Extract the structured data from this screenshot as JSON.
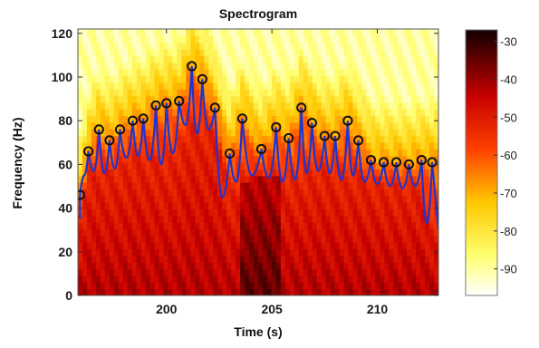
{
  "chart_data": {
    "type": "heatmap",
    "title": "Spectrogram",
    "xlabel": "Time (s)",
    "ylabel": "Frequency (Hz)",
    "xlim": [
      195.8,
      212.9
    ],
    "ylim": [
      0,
      122
    ],
    "xticks": [
      200,
      205,
      210
    ],
    "yticks": [
      0,
      20,
      40,
      60,
      80,
      100,
      120
    ],
    "colorbar": {
      "label_ticks": [
        -30,
        -40,
        -50,
        -60,
        -70,
        -80,
        -90
      ],
      "range": [
        -97,
        -27
      ],
      "colormap": "hot"
    },
    "peak_track": {
      "name": "",
      "color": "#2233cc",
      "marker": "circle",
      "marker_color": "#111111",
      "x": [
        195.9,
        196.3,
        196.8,
        197.3,
        197.8,
        198.4,
        198.9,
        199.5,
        200.0,
        200.6,
        201.2,
        201.7,
        202.3,
        203.0,
        203.6,
        204.5,
        205.2,
        205.8,
        206.4,
        206.9,
        207.5,
        208.0,
        208.6,
        209.1,
        209.7,
        210.3,
        210.9,
        211.5,
        212.1,
        212.6
      ],
      "y": [
        46,
        66,
        76,
        71,
        76,
        80,
        81,
        87,
        88,
        89,
        105,
        99,
        86,
        65,
        81,
        67,
        77,
        72,
        86,
        79,
        73,
        73,
        80,
        71,
        62,
        61,
        61,
        60,
        62,
        61
      ],
      "baseline_y": [
        35,
        55,
        57,
        56,
        58,
        63,
        64,
        62,
        60,
        65,
        78,
        74,
        76,
        45,
        52,
        55,
        54,
        52,
        53,
        56,
        57,
        56,
        53,
        55,
        52,
        51,
        50,
        49,
        50,
        33
      ]
    }
  },
  "colors": {
    "track": "#2233cc",
    "marker_edge": "#111111"
  }
}
